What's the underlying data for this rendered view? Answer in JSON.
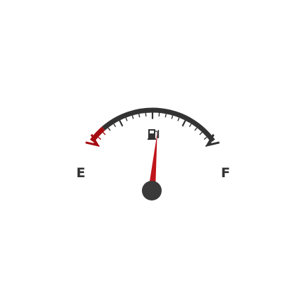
{
  "gauge": {
    "empty_label": "E",
    "full_label": "F",
    "fuel_level": 0.55,
    "pump_icon": "fuel-pump-icon",
    "colors": {
      "track": "#333333",
      "reserve": "#a50d13",
      "needle": "#c0141b",
      "hub": "#3a3a3a",
      "label": "#333333"
    }
  }
}
